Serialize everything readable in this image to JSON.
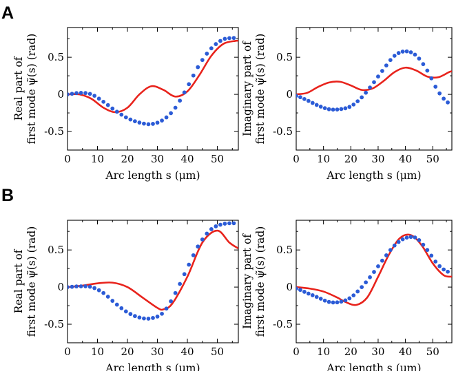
{
  "figure": {
    "panels": [
      {
        "letter": "A"
      },
      {
        "letter": "B"
      }
    ],
    "series_colors": {
      "line": "#e8231c",
      "dots": "#2b5bd6"
    }
  },
  "chart_data": [
    {
      "type": "line",
      "panel": "A",
      "xlabel": "Arc length s (μm)",
      "ylabel": [
        "Real part of",
        "first mode ψ̃(s) (rad)"
      ],
      "xlim": [
        0,
        57
      ],
      "ylim": [
        -0.75,
        0.9
      ],
      "xticks": [
        0,
        10,
        20,
        30,
        40,
        50
      ],
      "yticks": [
        -0.5,
        0,
        0.5
      ],
      "series": [
        {
          "style": "line",
          "x": [
            0,
            4,
            8,
            12,
            16,
            20,
            24,
            28,
            32,
            36,
            40,
            44,
            48,
            52,
            56,
            57
          ],
          "y": [
            0,
            0,
            -0.06,
            -0.18,
            -0.24,
            -0.18,
            0,
            0.11,
            0.06,
            -0.03,
            0.04,
            0.26,
            0.52,
            0.68,
            0.72,
            0.72
          ]
        },
        {
          "style": "dots",
          "x": [
            0,
            4,
            8,
            12,
            16,
            20,
            24,
            28,
            32,
            36,
            40,
            44,
            48,
            52,
            56
          ],
          "y": [
            0,
            0.02,
            0,
            -0.1,
            -0.22,
            -0.32,
            -0.38,
            -0.4,
            -0.34,
            -0.18,
            0.1,
            0.4,
            0.62,
            0.74,
            0.76
          ]
        }
      ]
    },
    {
      "type": "line",
      "panel": "A",
      "xlabel": "Arc length s (μm)",
      "ylabel": [
        "Imaginary part of",
        "first mode ψ̃(s) (rad)"
      ],
      "xlim": [
        0,
        57
      ],
      "ylim": [
        -0.75,
        0.9
      ],
      "xticks": [
        0,
        10,
        20,
        30,
        40,
        50
      ],
      "yticks": [
        -0.5,
        0,
        0.5
      ],
      "series": [
        {
          "style": "line",
          "x": [
            0,
            4,
            8,
            12,
            16,
            20,
            24,
            28,
            32,
            36,
            40,
            44,
            48,
            52,
            56,
            57
          ],
          "y": [
            0,
            0.02,
            0.1,
            0.16,
            0.17,
            0.12,
            0.06,
            0.08,
            0.18,
            0.3,
            0.36,
            0.32,
            0.24,
            0.23,
            0.3,
            0.31
          ]
        },
        {
          "style": "dots",
          "x": [
            0,
            4,
            8,
            12,
            16,
            20,
            24,
            28,
            32,
            36,
            40,
            44,
            48,
            52,
            56
          ],
          "y": [
            -0.02,
            -0.08,
            -0.15,
            -0.2,
            -0.2,
            -0.16,
            -0.04,
            0.14,
            0.34,
            0.52,
            0.58,
            0.52,
            0.32,
            0.04,
            -0.12
          ]
        }
      ]
    },
    {
      "type": "line",
      "panel": "B",
      "xlabel": "Arc length s (μm)",
      "ylabel": [
        "Real part of",
        "first mode ψ̃(s) (rad)"
      ],
      "xlim": [
        0,
        57
      ],
      "ylim": [
        -0.75,
        0.9
      ],
      "xticks": [
        0,
        10,
        20,
        30,
        40,
        50
      ],
      "yticks": [
        -0.5,
        0,
        0.5
      ],
      "series": [
        {
          "style": "line",
          "x": [
            0,
            5,
            10,
            15,
            20,
            25,
            30,
            32,
            35,
            40,
            45,
            50,
            54,
            57
          ],
          "y": [
            0,
            0.02,
            0.05,
            0.06,
            0,
            -0.14,
            -0.28,
            -0.3,
            -0.22,
            0.14,
            0.6,
            0.76,
            0.6,
            0.52
          ]
        },
        {
          "style": "dots",
          "x": [
            0,
            4,
            8,
            12,
            16,
            20,
            24,
            28,
            32,
            36,
            40,
            44,
            48,
            52,
            56
          ],
          "y": [
            0,
            0.01,
            0,
            -0.08,
            -0.22,
            -0.34,
            -0.41,
            -0.42,
            -0.34,
            -0.08,
            0.26,
            0.58,
            0.78,
            0.85,
            0.86
          ]
        }
      ]
    },
    {
      "type": "line",
      "panel": "B",
      "xlabel": "Arc length s (μm)",
      "ylabel": [
        "Imaginary part of",
        "first mode ψ̃(s) (rad)"
      ],
      "xlim": [
        0,
        57
      ],
      "ylim": [
        -0.75,
        0.9
      ],
      "xticks": [
        0,
        10,
        20,
        30,
        40,
        50
      ],
      "yticks": [
        -0.5,
        0,
        0.5
      ],
      "series": [
        {
          "style": "line",
          "x": [
            0,
            5,
            10,
            15,
            18,
            22,
            26,
            30,
            34,
            38,
            42,
            46,
            50,
            54,
            57
          ],
          "y": [
            0,
            -0.02,
            -0.06,
            -0.14,
            -0.2,
            -0.24,
            -0.14,
            0.14,
            0.44,
            0.66,
            0.7,
            0.56,
            0.32,
            0.16,
            0.14
          ]
        },
        {
          "style": "dots",
          "x": [
            0,
            4,
            8,
            12,
            16,
            20,
            24,
            28,
            32,
            36,
            40,
            44,
            48,
            52,
            56
          ],
          "y": [
            -0.02,
            -0.08,
            -0.14,
            -0.2,
            -0.2,
            -0.14,
            0,
            0.18,
            0.38,
            0.56,
            0.66,
            0.66,
            0.5,
            0.3,
            0.2
          ]
        }
      ]
    }
  ]
}
